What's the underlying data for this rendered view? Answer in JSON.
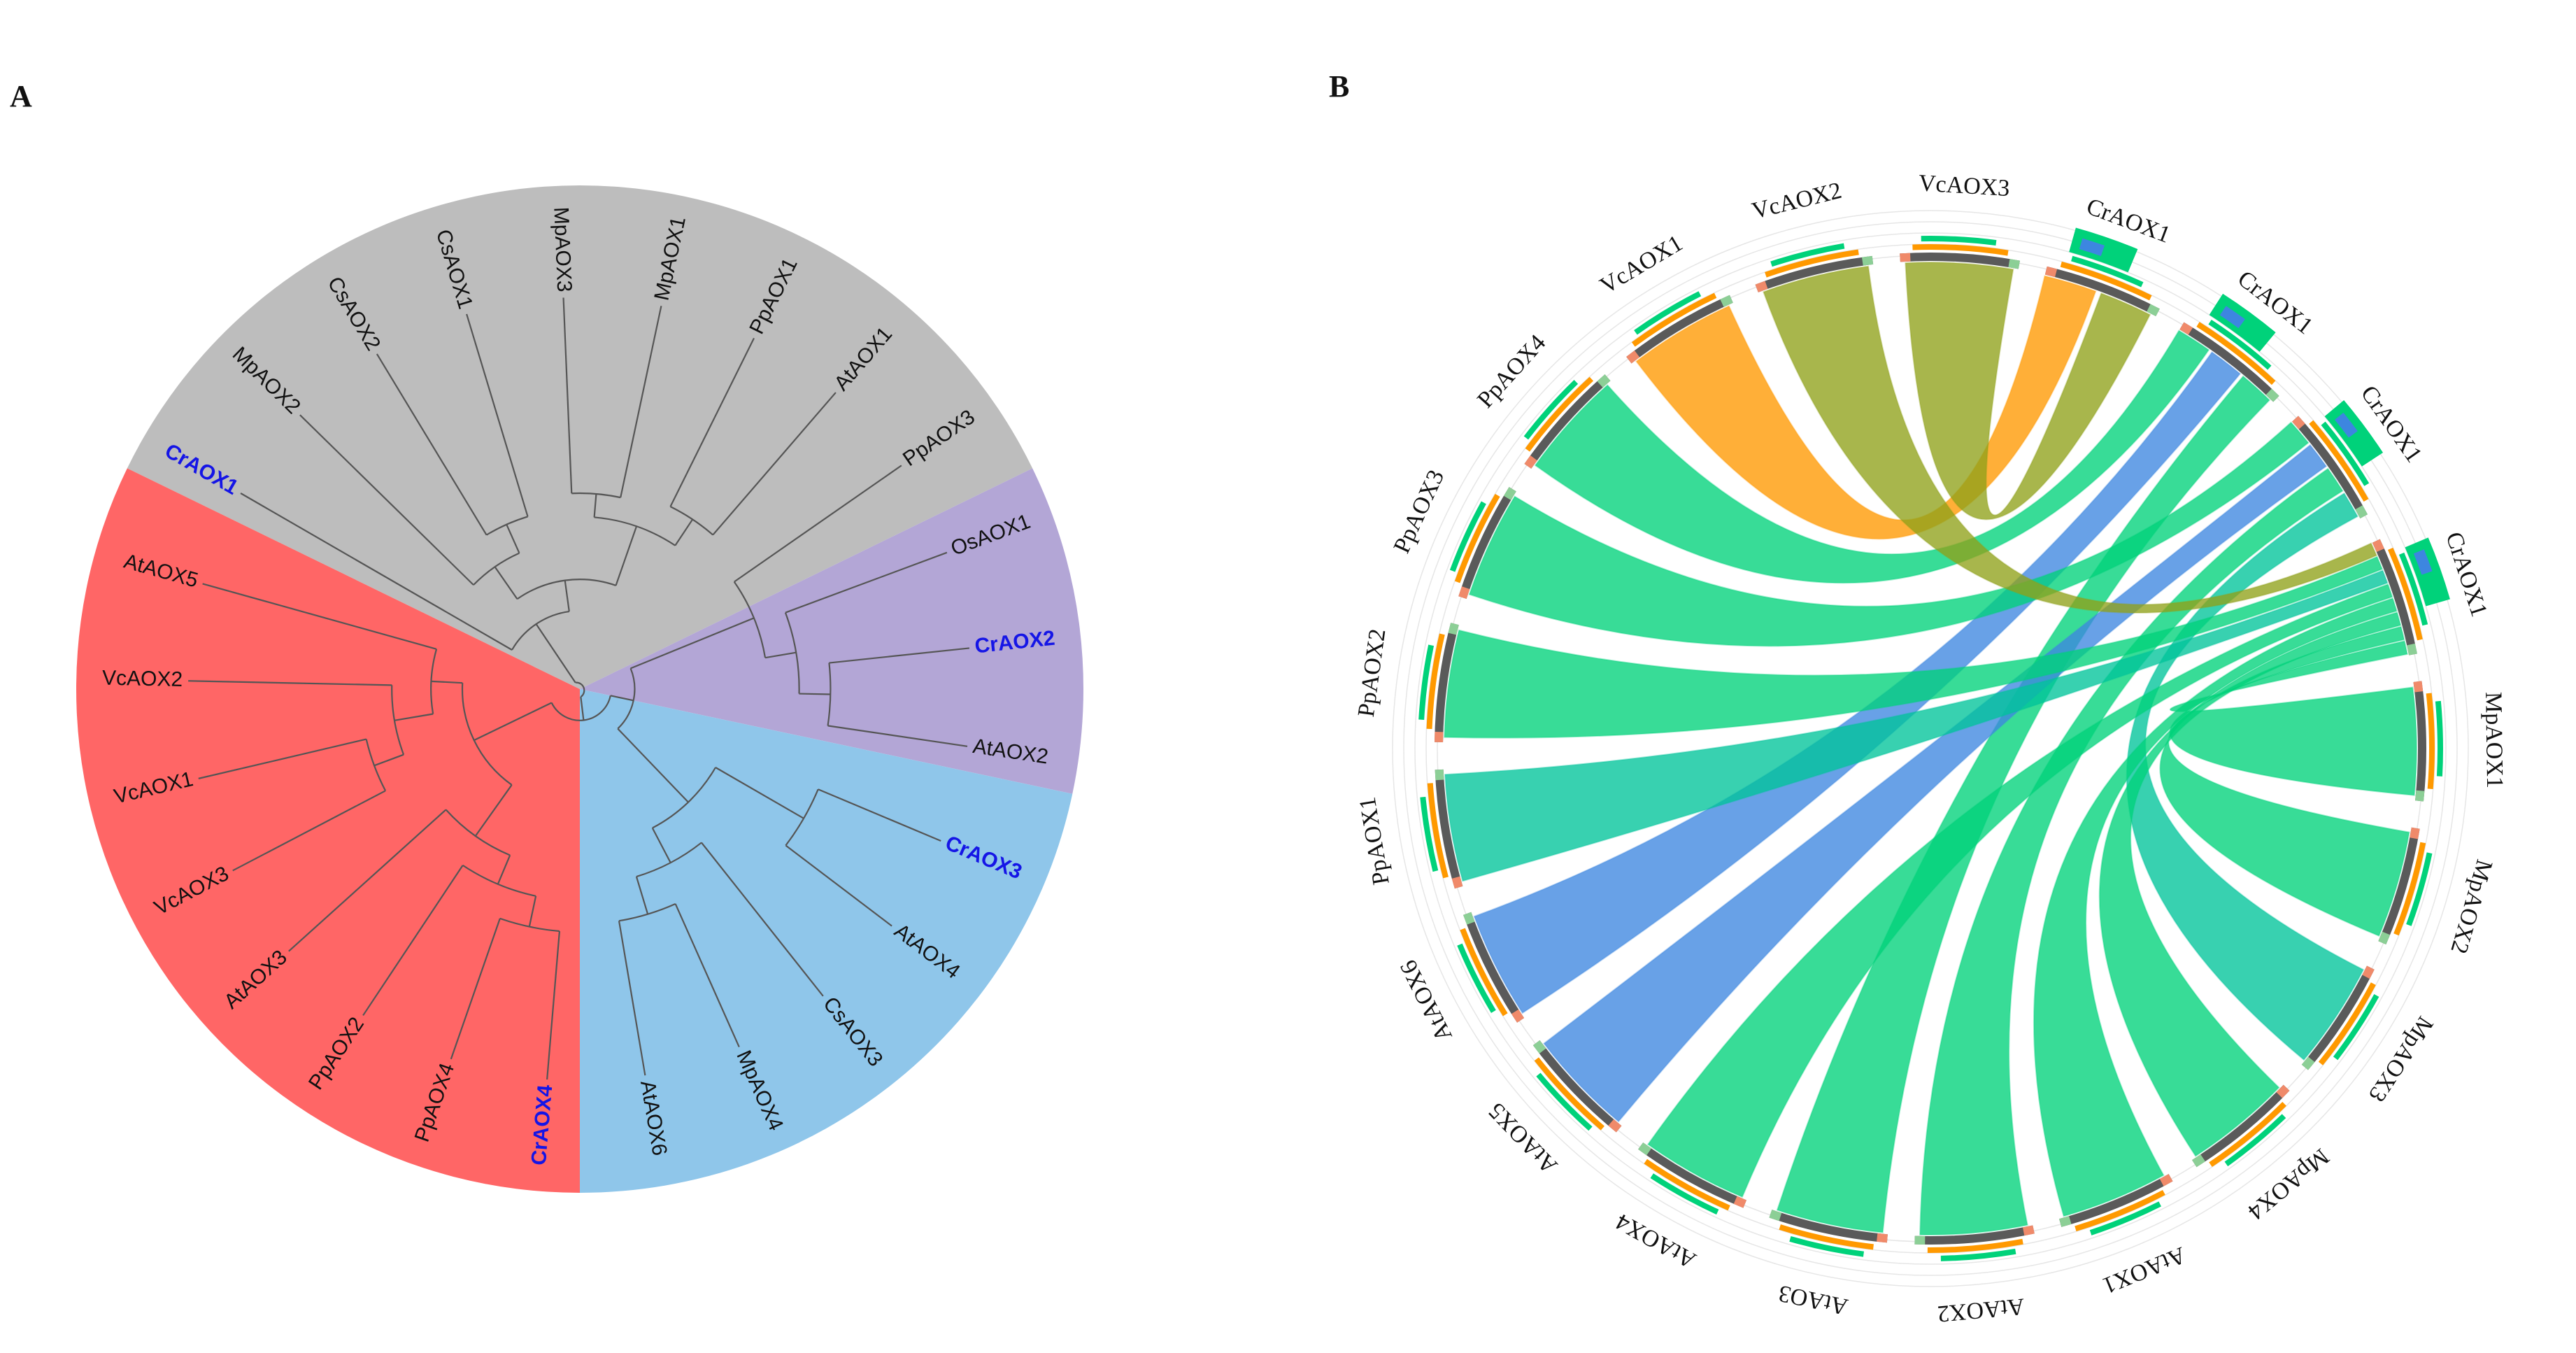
{
  "panels": {
    "a": "A",
    "b": "B"
  },
  "colors": {
    "grey": "#bdbdbd",
    "purple": "#b3a6d6",
    "blue": "#8fc6ea",
    "red": "#ff6666",
    "chord_green": "#00d27a",
    "chord_orange": "#ff9900",
    "chord_blue": "#3d86e0",
    "chord_olive": "#8fa11a",
    "highlight_text": "#1515e6"
  },
  "tree": {
    "title_letter": "A",
    "clades": [
      {
        "name": "grey",
        "color": "#bdbdbd",
        "from_deg": 154,
        "to_deg": 26
      },
      {
        "name": "purple",
        "color": "#b3a6d6",
        "from_deg": 26,
        "to_deg": -12
      },
      {
        "name": "blue",
        "color": "#8fc6ea",
        "from_deg": -12,
        "to_deg": -90
      },
      {
        "name": "red",
        "color": "#ff6666",
        "from_deg": -90,
        "to_deg": -206
      }
    ],
    "leaves": [
      {
        "name": "CrAOX1",
        "highlight": true
      },
      {
        "name": "MpAOX2",
        "highlight": false
      },
      {
        "name": "CsAOX2",
        "highlight": false
      },
      {
        "name": "CsAOX1",
        "highlight": false
      },
      {
        "name": "MpAOX3",
        "highlight": false
      },
      {
        "name": "MpAOX1",
        "highlight": false
      },
      {
        "name": "PpAOX1",
        "highlight": false
      },
      {
        "name": "AtAOX1",
        "highlight": false
      },
      {
        "name": "PpAOX3",
        "highlight": false
      },
      {
        "name": "OsAOX1",
        "highlight": false
      },
      {
        "name": "CrAOX2",
        "highlight": true
      },
      {
        "name": "AtAOX2",
        "highlight": false
      },
      {
        "name": "CrAOX3",
        "highlight": true
      },
      {
        "name": "AtAOX4",
        "highlight": false
      },
      {
        "name": "CsAOX3",
        "highlight": false
      },
      {
        "name": "MpAOX4",
        "highlight": false
      },
      {
        "name": "AtAOX6",
        "highlight": false
      },
      {
        "name": "CrAOX4",
        "highlight": true
      },
      {
        "name": "PpAOX4",
        "highlight": false
      },
      {
        "name": "PpAOX2",
        "highlight": false
      },
      {
        "name": "AtAOX3",
        "highlight": false
      },
      {
        "name": "VcAOX3",
        "highlight": false
      },
      {
        "name": "VcAOX1",
        "highlight": false
      },
      {
        "name": "VcAOX2",
        "highlight": false
      },
      {
        "name": "AtAOX5",
        "highlight": false
      }
    ]
  },
  "chord": {
    "title_letter": "B",
    "segments": [
      {
        "name": "CrAOX1",
        "kind": "source"
      },
      {
        "name": "CrAOX1",
        "kind": "source"
      },
      {
        "name": "CrAOX1",
        "kind": "source"
      },
      {
        "name": "CrAOX1",
        "kind": "source"
      },
      {
        "name": "MpAOX1",
        "kind": "target"
      },
      {
        "name": "MpAOX2",
        "kind": "target"
      },
      {
        "name": "MpAOX3",
        "kind": "target"
      },
      {
        "name": "MpAOX4",
        "kind": "target"
      },
      {
        "name": "AtAOX1",
        "kind": "target"
      },
      {
        "name": "AtAOX2",
        "kind": "target"
      },
      {
        "name": "AtAO3",
        "kind": "target"
      },
      {
        "name": "AtAOX4",
        "kind": "target"
      },
      {
        "name": "AtAOX5",
        "kind": "target"
      },
      {
        "name": "AtAOX6",
        "kind": "target"
      },
      {
        "name": "PpAOX1",
        "kind": "target"
      },
      {
        "name": "PpAOX2",
        "kind": "target"
      },
      {
        "name": "PpAOX3",
        "kind": "target"
      },
      {
        "name": "PpAOX4",
        "kind": "target"
      },
      {
        "name": "VcAOX1",
        "kind": "target"
      },
      {
        "name": "VcAOX2",
        "kind": "target"
      },
      {
        "name": "VcAOX3",
        "kind": "target"
      }
    ],
    "links": [
      {
        "from": 0,
        "to": 18,
        "color": "#ff9900"
      },
      {
        "from": 0,
        "to": 20,
        "color": "#8fa11a"
      },
      {
        "from": 1,
        "to": 17,
        "color": "#00d27a"
      },
      {
        "from": 1,
        "to": 13,
        "color": "#3d86e0"
      },
      {
        "from": 1,
        "to": 10,
        "color": "#00d27a"
      },
      {
        "from": 2,
        "to": 16,
        "color": "#00d27a"
      },
      {
        "from": 2,
        "to": 12,
        "color": "#3d86e0"
      },
      {
        "from": 2,
        "to": 9,
        "color": "#00d27a"
      },
      {
        "from": 2,
        "to": 6,
        "color": "#00c49a"
      },
      {
        "from": 3,
        "to": 19,
        "color": "#8fa11a"
      },
      {
        "from": 3,
        "to": 15,
        "color": "#00d27a"
      },
      {
        "from": 3,
        "to": 14,
        "color": "#00c49a"
      },
      {
        "from": 3,
        "to": 11,
        "color": "#00d27a"
      },
      {
        "from": 3,
        "to": 8,
        "color": "#00d27a"
      },
      {
        "from": 3,
        "to": 7,
        "color": "#00d27a"
      },
      {
        "from": 3,
        "to": 5,
        "color": "#00d27a"
      },
      {
        "from": 3,
        "to": 4,
        "color": "#00d27a"
      }
    ]
  }
}
